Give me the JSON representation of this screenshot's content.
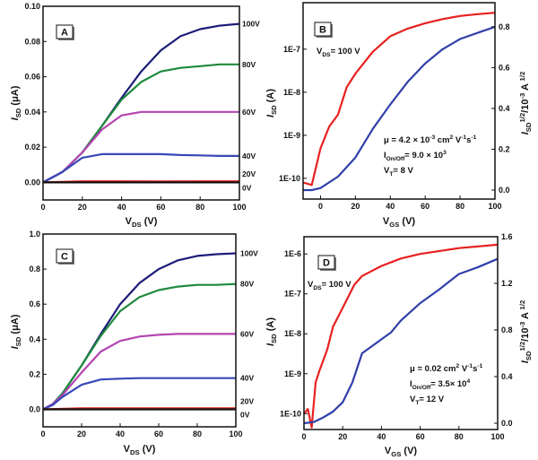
{
  "chart_data": [
    {
      "type": "line",
      "panel_label": "A",
      "xlabel": [
        {
          "t": "V"
        },
        {
          "t": "DS",
          "s": "sub"
        },
        {
          "t": " (V)"
        }
      ],
      "ylabel": [
        {
          "t": "I",
          "s": "i"
        },
        {
          "t": "SD",
          "s": "sub"
        },
        {
          "t": " (μA)"
        }
      ],
      "xlim": [
        0,
        100
      ],
      "ylim": [
        -0.01,
        0.1
      ],
      "ylog": false,
      "xticks": [
        {
          "v": 0,
          "label": "0"
        },
        {
          "v": 20,
          "label": "20"
        },
        {
          "v": 40,
          "label": "40"
        },
        {
          "v": 60,
          "label": "60"
        },
        {
          "v": 80,
          "label": "80"
        },
        {
          "v": 100,
          "label": "100"
        }
      ],
      "yticks": [
        {
          "v": 0,
          "label": "0.00"
        },
        {
          "v": 0.02,
          "label": "0.02"
        },
        {
          "v": 0.04,
          "label": "0.04"
        },
        {
          "v": 0.06,
          "label": "0.06"
        },
        {
          "v": 0.08,
          "label": "0.08"
        },
        {
          "v": 0.1,
          "label": "0.10"
        }
      ],
      "series": [
        {
          "name": "100V",
          "color": "#1c1c78",
          "axis": "left",
          "x": [
            0,
            10,
            20,
            30,
            40,
            50,
            60,
            70,
            80,
            90,
            100
          ],
          "y": [
            0,
            0.006,
            0.017,
            0.032,
            0.048,
            0.063,
            0.075,
            0.083,
            0.087,
            0.089,
            0.09
          ]
        },
        {
          "name": "80V",
          "color": "#1e8a3c",
          "axis": "left",
          "x": [
            0,
            10,
            20,
            30,
            40,
            50,
            60,
            70,
            80,
            90,
            100
          ],
          "y": [
            0,
            0.006,
            0.017,
            0.032,
            0.047,
            0.057,
            0.063,
            0.065,
            0.066,
            0.067,
            0.067
          ]
        },
        {
          "name": "60V",
          "color": "#b444b0",
          "axis": "left",
          "x": [
            0,
            10,
            20,
            30,
            40,
            50,
            60,
            70,
            80,
            90,
            100
          ],
          "y": [
            0,
            0.006,
            0.017,
            0.03,
            0.038,
            0.04,
            0.04,
            0.04,
            0.04,
            0.04,
            0.04
          ]
        },
        {
          "name": "40V",
          "color": "#3848b8",
          "axis": "left",
          "x": [
            0,
            10,
            20,
            30,
            40,
            50,
            60,
            70,
            80,
            90,
            100
          ],
          "y": [
            0,
            0.006,
            0.014,
            0.016,
            0.016,
            0.016,
            0.016,
            0.0155,
            0.0153,
            0.015,
            0.015
          ]
        },
        {
          "name": "20V",
          "color": "#e82020",
          "axis": "left",
          "x": [
            0,
            20,
            40,
            60,
            80,
            100
          ],
          "y": [
            0,
            0.0006,
            0.0006,
            0.0005,
            0.0006,
            0.0006
          ]
        },
        {
          "name": "0V",
          "color": "#111111",
          "axis": "left",
          "x": [
            0,
            100
          ],
          "y": [
            0,
            0
          ]
        }
      ],
      "annotations": []
    },
    {
      "type": "line",
      "panel_label": "B",
      "xlabel": [
        {
          "t": "V"
        },
        {
          "t": "GS",
          "s": "sub"
        },
        {
          "t": " (V)"
        }
      ],
      "ylabel": [
        {
          "t": "I",
          "s": "i"
        },
        {
          "t": "SD",
          "s": "sub"
        },
        {
          "t": " (A)"
        }
      ],
      "y2label": [
        {
          "t": "I",
          "s": "i"
        },
        {
          "t": "SD",
          "s": "sub"
        },
        {
          "t": "1/2",
          "s": "sup"
        },
        {
          "t": "/10"
        },
        {
          "t": "-3",
          "s": "sup"
        },
        {
          "t": " A "
        },
        {
          "t": "1/2",
          "s": "sup"
        }
      ],
      "xlim": [
        -10,
        100
      ],
      "ylim": [
        1.2e-06,
        3.3e-11
      ],
      "ylog": true,
      "y2lim": [
        -0.044,
        0.918
      ],
      "xticks": [
        {
          "v": 0,
          "label": "0"
        },
        {
          "v": 20,
          "label": "20"
        },
        {
          "v": 40,
          "label": "40"
        },
        {
          "v": 60,
          "label": "60"
        },
        {
          "v": 80,
          "label": "80"
        },
        {
          "v": 100,
          "label": "100"
        }
      ],
      "yticks": [
        {
          "v": 1e-10,
          "label": "1E-10"
        },
        {
          "v": 1e-09,
          "label": "1E-9"
        },
        {
          "v": 1e-08,
          "label": "1E-8"
        },
        {
          "v": 1e-07,
          "label": "1E-7"
        }
      ],
      "y2ticks": [
        {
          "v": 0,
          "label": "0.0"
        },
        {
          "v": 0.2,
          "label": "0.2"
        },
        {
          "v": 0.4,
          "label": "0.4"
        },
        {
          "v": 0.6,
          "label": "0.6"
        },
        {
          "v": 0.8,
          "label": "0.8"
        }
      ],
      "series": [
        {
          "color": "#e82020",
          "axis": "left",
          "x": [
            -10,
            -5,
            0,
            5,
            10,
            15,
            20,
            30,
            40,
            50,
            60,
            70,
            80,
            90,
            100
          ],
          "y": [
            8e-11,
            7e-11,
            5e-10,
            1.6e-09,
            3e-09,
            1.3e-08,
            2.7e-08,
            8.7e-08,
            2e-07,
            3e-07,
            4e-07,
            5e-07,
            5.9e-07,
            6.5e-07,
            7e-07
          ]
        },
        {
          "color": "#3040a8",
          "axis": "right",
          "x": [
            -10,
            -5,
            0,
            10,
            20,
            30,
            40,
            50,
            60,
            70,
            80,
            90,
            100
          ],
          "y": [
            0,
            0,
            0.01,
            0.066,
            0.16,
            0.3,
            0.42,
            0.53,
            0.62,
            0.69,
            0.74,
            0.77,
            0.8
          ]
        }
      ],
      "annotations": [
        [
          {
            "t": "V"
          },
          {
            "t": "DS",
            "s": "sub"
          },
          {
            "t": "= 100 V"
          }
        ],
        [
          {
            "t": "μ = 4.2 × 10"
          },
          {
            "t": "-3",
            "s": "sup"
          },
          {
            "t": " cm"
          },
          {
            "t": "2",
            "s": "sup"
          },
          {
            "t": " V"
          },
          {
            "t": "-1",
            "s": "sup"
          },
          {
            "t": "s"
          },
          {
            "t": "-1",
            "s": "sup"
          }
        ],
        [
          {
            "t": "I"
          },
          {
            "t": "On/Off",
            "s": "sub"
          },
          {
            "t": "= 9.0 × 10"
          },
          {
            "t": "3",
            "s": "sup"
          }
        ],
        [
          {
            "t": "V"
          },
          {
            "t": "T",
            "s": "sub"
          },
          {
            "t": "= 8 V"
          }
        ]
      ]
    },
    {
      "type": "line",
      "panel_label": "C",
      "xlabel": [
        {
          "t": "V"
        },
        {
          "t": "DS",
          "s": "sub"
        },
        {
          "t": " (V)"
        }
      ],
      "ylabel": [
        {
          "t": "I",
          "s": "i"
        },
        {
          "t": "SD",
          "s": "sub"
        },
        {
          "t": " (μA)"
        }
      ],
      "xlim": [
        0,
        100
      ],
      "ylim": [
        -0.1,
        1.0
      ],
      "ylog": false,
      "xticks": [
        {
          "v": 0,
          "label": "0"
        },
        {
          "v": 20,
          "label": "20"
        },
        {
          "v": 40,
          "label": "40"
        },
        {
          "v": 60,
          "label": "60"
        },
        {
          "v": 80,
          "label": "80"
        },
        {
          "v": 100,
          "label": "100"
        }
      ],
      "yticks": [
        {
          "v": 0,
          "label": "0.0"
        },
        {
          "v": 0.2,
          "label": "0.2"
        },
        {
          "v": 0.4,
          "label": "0.4"
        },
        {
          "v": 0.6,
          "label": "0.6"
        },
        {
          "v": 0.8,
          "label": "0.8"
        },
        {
          "v": 1.0,
          "label": "1.0"
        }
      ],
      "series": [
        {
          "name": "100V",
          "color": "#1c1c78",
          "axis": "left",
          "x": [
            0,
            5,
            10,
            20,
            30,
            40,
            50,
            60,
            70,
            80,
            90,
            100
          ],
          "y": [
            0,
            0.03,
            0.09,
            0.25,
            0.43,
            0.6,
            0.72,
            0.8,
            0.85,
            0.875,
            0.885,
            0.89
          ]
        },
        {
          "name": "80V",
          "color": "#1e8a3c",
          "axis": "left",
          "x": [
            0,
            5,
            10,
            20,
            30,
            40,
            50,
            60,
            70,
            80,
            90,
            100
          ],
          "y": [
            0,
            0.03,
            0.09,
            0.25,
            0.42,
            0.56,
            0.64,
            0.68,
            0.7,
            0.71,
            0.71,
            0.715
          ]
        },
        {
          "name": "60V",
          "color": "#b444b0",
          "axis": "left",
          "x": [
            0,
            5,
            10,
            20,
            30,
            40,
            50,
            60,
            70,
            80,
            90,
            100
          ],
          "y": [
            0,
            0.03,
            0.08,
            0.21,
            0.33,
            0.39,
            0.415,
            0.425,
            0.43,
            0.43,
            0.43,
            0.43
          ]
        },
        {
          "name": "40V",
          "color": "#3848b8",
          "axis": "left",
          "x": [
            0,
            5,
            10,
            20,
            30,
            40,
            50,
            60,
            70,
            80,
            90,
            100
          ],
          "y": [
            0,
            0.025,
            0.07,
            0.14,
            0.17,
            0.175,
            0.178,
            0.178,
            0.178,
            0.178,
            0.178,
            0.178
          ]
        },
        {
          "name": "20V",
          "color": "#e82020",
          "axis": "left",
          "x": [
            0,
            20,
            40,
            60,
            80,
            100
          ],
          "y": [
            0,
            0.006,
            0.006,
            0.006,
            0.006,
            0.006
          ]
        },
        {
          "name": "0V",
          "color": "#111111",
          "axis": "left",
          "x": [
            0,
            100
          ],
          "y": [
            0,
            0
          ]
        }
      ],
      "annotations": []
    },
    {
      "type": "line",
      "panel_label": "D",
      "xlabel": [
        {
          "t": "V"
        },
        {
          "t": "GS",
          "s": "sub"
        },
        {
          "t": " (V)"
        }
      ],
      "ylabel": [
        {
          "t": "I",
          "s": "i"
        },
        {
          "t": "SD",
          "s": "sub"
        },
        {
          "t": " (A)"
        }
      ],
      "y2label": [
        {
          "t": "I",
          "s": "i"
        },
        {
          "t": "SD",
          "s": "sub"
        },
        {
          "t": "1/2",
          "s": "sup"
        },
        {
          "t": "/10"
        },
        {
          "t": "-3",
          "s": "sup"
        },
        {
          "t": " A "
        },
        {
          "t": "1/2",
          "s": "sup"
        }
      ],
      "xlim": [
        0,
        100
      ],
      "ylim": [
        2.7e-06,
        4e-11
      ],
      "ylog": true,
      "y2lim": [
        -0.054,
        1.6
      ],
      "xticks": [
        {
          "v": 0,
          "label": "0"
        },
        {
          "v": 20,
          "label": "20"
        },
        {
          "v": 40,
          "label": "40"
        },
        {
          "v": 60,
          "label": "60"
        },
        {
          "v": 80,
          "label": "80"
        },
        {
          "v": 100,
          "label": "100"
        }
      ],
      "yticks": [
        {
          "v": 1e-10,
          "label": "1E-10"
        },
        {
          "v": 1e-09,
          "label": "1E-9"
        },
        {
          "v": 1e-08,
          "label": "1E-8"
        },
        {
          "v": 1e-07,
          "label": "1E-7"
        },
        {
          "v": 1e-06,
          "label": "1E-6"
        }
      ],
      "y2ticks": [
        {
          "v": 0,
          "label": "0.0"
        },
        {
          "v": 0.4,
          "label": "0.4"
        },
        {
          "v": 0.8,
          "label": "0.8"
        },
        {
          "v": 1.2,
          "label": "1.2"
        },
        {
          "v": 1.6,
          "label": "1.6"
        }
      ],
      "series": [
        {
          "color": "#e82020",
          "axis": "left",
          "x": [
            0,
            2,
            4,
            6,
            8,
            12,
            15,
            20,
            26,
            30,
            40,
            50,
            60,
            80,
            100
          ],
          "y": [
            1e-10,
            1.3e-10,
            4.5e-11,
            6e-10,
            1.2e-09,
            4e-09,
            1.5e-08,
            4.5e-08,
            1.7e-07,
            2.8e-07,
            5e-07,
            7.7e-07,
            1e-06,
            1.4e-06,
            1.7e-06
          ]
        },
        {
          "color": "#3040a8",
          "axis": "right",
          "x": [
            0,
            5,
            10,
            15,
            20,
            25,
            30,
            40,
            45,
            50,
            60,
            70,
            80,
            90,
            100
          ],
          "y": [
            0,
            0.01,
            0.05,
            0.1,
            0.18,
            0.35,
            0.6,
            0.72,
            0.78,
            0.88,
            1.03,
            1.15,
            1.28,
            1.34,
            1.41
          ]
        }
      ],
      "annotations": [
        [
          {
            "t": "V"
          },
          {
            "t": "DS",
            "s": "sub"
          },
          {
            "t": "= 100 V"
          }
        ],
        [
          {
            "t": "μ = 0.02 cm"
          },
          {
            "t": "2",
            "s": "sup"
          },
          {
            "t": " V"
          },
          {
            "t": "-1",
            "s": "sup"
          },
          {
            "t": "s"
          },
          {
            "t": "-1",
            "s": "sup"
          }
        ],
        [
          {
            "t": "I"
          },
          {
            "t": "On/Off",
            "s": "sub"
          },
          {
            "t": "= 3.5× 10"
          },
          {
            "t": "4",
            "s": "sup"
          }
        ],
        [
          {
            "t": "V"
          },
          {
            "t": "T",
            "s": "sub"
          },
          {
            "t": "= 12 V"
          }
        ]
      ]
    }
  ]
}
